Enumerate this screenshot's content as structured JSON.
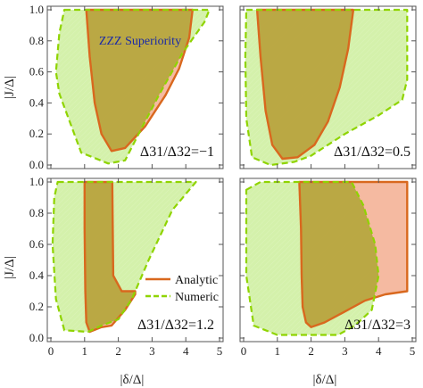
{
  "figure": {
    "y_axis_label": "|J/Δ|",
    "x_axis_label": "|δ/Δ|",
    "annotation": "ZZZ Superiority",
    "legend": {
      "analytic_label": "Analytic",
      "numeric_label": "Numeric",
      "placement": "inside bottom-left panel, center-right"
    },
    "colors": {
      "analytic_line": "#d9681e",
      "analytic_fill": "#f2a98a",
      "numeric_line": "#8fd400",
      "numeric_fill": "#cdee9c",
      "overlap_fill": "#b7a640",
      "frame": "#555555"
    }
  },
  "chart_data": [
    {
      "type": "area",
      "panel": "top-left",
      "label": "Δ31/Δ32=−1",
      "xlim": [
        0,
        5
      ],
      "ylim": [
        0,
        1
      ],
      "xticks": [
        "0",
        "1",
        "2",
        "3",
        "4",
        "5"
      ],
      "yticks": [
        "0.0",
        "0.2",
        "0.4",
        "0.6",
        "0.8",
        "1.0"
      ],
      "show_xtick_labels": false,
      "show_ytick_labels": true,
      "series": [
        {
          "name": "Analytic",
          "boundary": [
            [
              1.05,
              1.0
            ],
            [
              1.15,
              0.7
            ],
            [
              1.3,
              0.4
            ],
            [
              1.5,
              0.2
            ],
            [
              1.8,
              0.09
            ],
            [
              2.2,
              0.11
            ],
            [
              2.8,
              0.25
            ],
            [
              3.4,
              0.45
            ],
            [
              3.8,
              0.62
            ],
            [
              4.1,
              0.82
            ],
            [
              4.2,
              1.0
            ]
          ]
        },
        {
          "name": "Numeric",
          "boundary": [
            [
              0.4,
              1.0
            ],
            [
              4.7,
              1.0
            ],
            [
              4.55,
              0.92
            ],
            [
              3.9,
              0.72
            ],
            [
              3.2,
              0.45
            ],
            [
              2.6,
              0.2
            ],
            [
              2.2,
              0.03
            ],
            [
              1.7,
              0.01
            ],
            [
              0.9,
              0.08
            ],
            [
              0.25,
              0.46
            ],
            [
              0.15,
              0.6
            ],
            [
              0.25,
              0.85
            ]
          ]
        }
      ]
    },
    {
      "type": "area",
      "panel": "top-right",
      "label": "Δ31/Δ32=0.5",
      "xlim": [
        0,
        5
      ],
      "ylim": [
        0,
        1
      ],
      "xticks": [
        "0",
        "1",
        "2",
        "3",
        "4",
        "5"
      ],
      "yticks": [
        "0.0",
        "0.2",
        "0.4",
        "0.6",
        "0.8",
        "1.0"
      ],
      "show_xtick_labels": false,
      "show_ytick_labels": false,
      "series": [
        {
          "name": "Analytic",
          "boundary": [
            [
              0.4,
              1.0
            ],
            [
              0.5,
              0.7
            ],
            [
              0.65,
              0.35
            ],
            [
              0.85,
              0.13
            ],
            [
              1.15,
              0.04
            ],
            [
              1.6,
              0.05
            ],
            [
              2.1,
              0.13
            ],
            [
              2.5,
              0.28
            ],
            [
              2.85,
              0.5
            ],
            [
              3.1,
              0.75
            ],
            [
              3.25,
              1.0
            ]
          ]
        },
        {
          "name": "Numeric",
          "boundary": [
            [
              0.08,
              1.0
            ],
            [
              4.85,
              1.0
            ],
            [
              4.85,
              0.55
            ],
            [
              4.7,
              0.42
            ],
            [
              4.0,
              0.32
            ],
            [
              3.0,
              0.2
            ],
            [
              2.0,
              0.06
            ],
            [
              1.5,
              0.02
            ],
            [
              0.8,
              0.0
            ],
            [
              0.25,
              0.05
            ],
            [
              0.08,
              0.3
            ],
            [
              0.05,
              0.7
            ]
          ]
        }
      ]
    },
    {
      "type": "area",
      "panel": "bottom-left",
      "label": "Δ31/Δ32=1.2",
      "xlim": [
        0,
        5
      ],
      "ylim": [
        0,
        1
      ],
      "xticks": [
        "0",
        "1",
        "2",
        "3",
        "4",
        "5"
      ],
      "yticks": [
        "0.0",
        "0.2",
        "0.4",
        "0.6",
        "0.8",
        "1.0"
      ],
      "show_xtick_labels": true,
      "show_ytick_labels": true,
      "series": [
        {
          "name": "Analytic",
          "boundary": [
            [
              1.0,
              1.0
            ],
            [
              1.0,
              0.7
            ],
            [
              1.02,
              0.3
            ],
            [
              1.05,
              0.1
            ],
            [
              1.15,
              0.04
            ],
            [
              1.5,
              0.07
            ],
            [
              1.8,
              0.08
            ],
            [
              2.2,
              0.18
            ],
            [
              2.5,
              0.28
            ],
            [
              2.5,
              0.3
            ],
            [
              2.1,
              0.3
            ],
            [
              1.85,
              0.4
            ],
            [
              1.82,
              1.0
            ]
          ]
        },
        {
          "name": "Numeric",
          "boundary": [
            [
              0.2,
              1.0
            ],
            [
              4.3,
              1.0
            ],
            [
              3.6,
              0.82
            ],
            [
              2.9,
              0.5
            ],
            [
              2.4,
              0.25
            ],
            [
              2.0,
              0.12
            ],
            [
              1.5,
              0.08
            ],
            [
              1.1,
              0.04
            ],
            [
              0.4,
              0.05
            ],
            [
              0.15,
              0.25
            ],
            [
              0.05,
              0.6
            ],
            [
              0.1,
              0.9
            ]
          ]
        }
      ]
    },
    {
      "type": "area",
      "panel": "bottom-right",
      "label": "Δ31/Δ32=3",
      "xlim": [
        0,
        5
      ],
      "ylim": [
        0,
        1
      ],
      "xticks": [
        "0",
        "1",
        "2",
        "3",
        "4",
        "5"
      ],
      "yticks": [
        "0.0",
        "0.2",
        "0.4",
        "0.6",
        "0.8",
        "1.0"
      ],
      "show_xtick_labels": true,
      "show_ytick_labels": false,
      "series": [
        {
          "name": "Analytic",
          "boundary": [
            [
              1.65,
              1.0
            ],
            [
              1.7,
              0.7
            ],
            [
              1.72,
              0.4
            ],
            [
              1.75,
              0.2
            ],
            [
              1.85,
              0.1
            ],
            [
              2.0,
              0.07
            ],
            [
              2.4,
              0.1
            ],
            [
              3.0,
              0.17
            ],
            [
              3.6,
              0.24
            ],
            [
              4.2,
              0.28
            ],
            [
              4.85,
              0.3
            ],
            [
              4.85,
              1.0
            ]
          ]
        },
        {
          "name": "Numeric",
          "boundary": [
            [
              0.08,
              0.95
            ],
            [
              0.5,
              1.0
            ],
            [
              3.2,
              1.0
            ],
            [
              3.55,
              0.85
            ],
            [
              3.9,
              0.6
            ],
            [
              4.0,
              0.4
            ],
            [
              3.8,
              0.18
            ],
            [
              3.3,
              0.08
            ],
            [
              2.8,
              0.02
            ],
            [
              1.0,
              0.02
            ],
            [
              0.3,
              0.08
            ],
            [
              0.08,
              0.4
            ]
          ]
        }
      ]
    }
  ]
}
